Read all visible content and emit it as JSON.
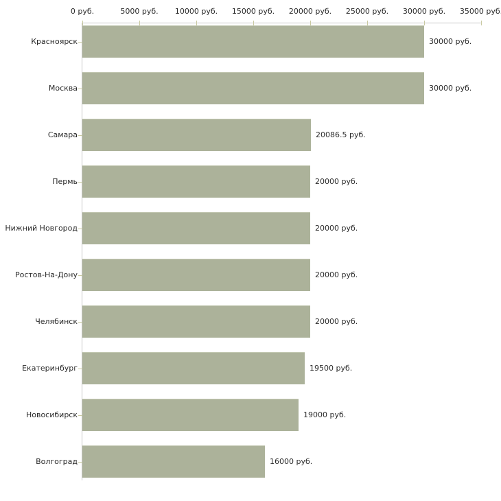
{
  "chart_data": {
    "type": "bar",
    "orientation": "horizontal",
    "title": "",
    "xlabel": "",
    "ylabel": "",
    "categories": [
      "Красноярск",
      "Москва",
      "Самара",
      "Пермь",
      "Нижний Новгород",
      "Ростов-На-Дону",
      "Челябинск",
      "Екатеринбург",
      "Новосибирск",
      "Волгоград"
    ],
    "values": [
      30000,
      30000,
      20086.5,
      20000,
      20000,
      20000,
      20000,
      19500,
      19000,
      16000
    ],
    "value_labels": [
      "30000 руб.",
      "30000 руб.",
      "20086.5 руб.",
      "20000 руб.",
      "20000 руб.",
      "20000 руб.",
      "20000 руб.",
      "19500 руб.",
      "19000 руб.",
      "16000 руб."
    ],
    "x_axis": {
      "position": "top",
      "range": [
        0,
        35000
      ],
      "unit": "руб.",
      "ticks": [
        0,
        5000,
        10000,
        15000,
        20000,
        25000,
        30000,
        35000
      ],
      "tick_labels": [
        "0 руб.",
        "5000 руб.",
        "10000 руб.",
        "15000 руб.",
        "20000 руб.",
        "25000 руб.",
        "30000 руб.",
        "35000 руб."
      ]
    },
    "grid": false,
    "legend": false,
    "colors": {
      "bar": "#acb29a",
      "bar_highlight": "#c3c8b2",
      "axis_line": "#c6c6c6",
      "tick_mark": "#c9c9a1",
      "text": "#2a2a2a",
      "background": "#ffffff"
    }
  }
}
